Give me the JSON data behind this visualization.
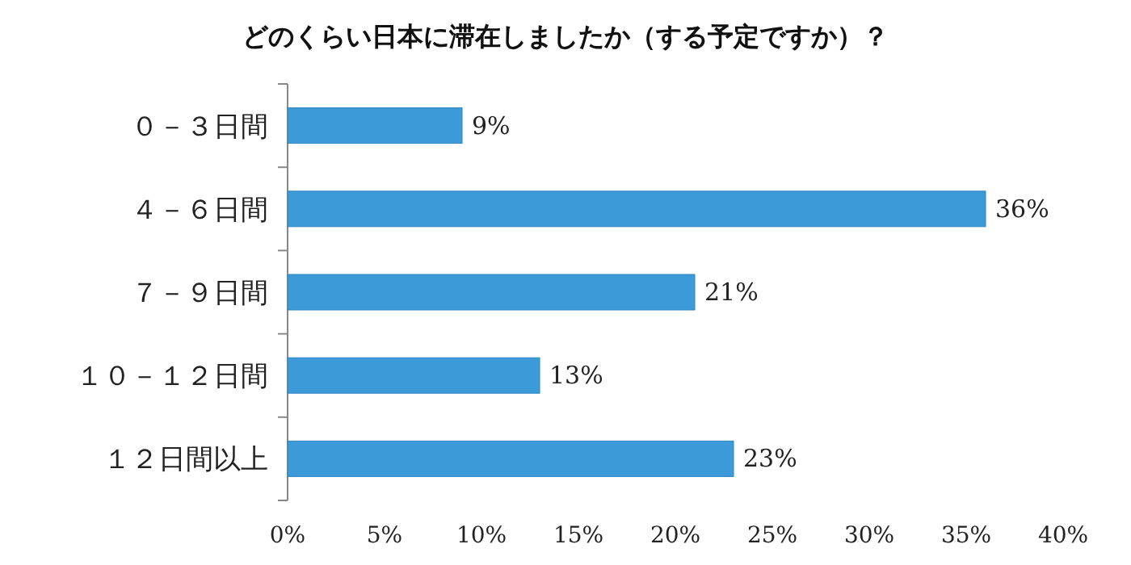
{
  "chart_data": {
    "type": "bar",
    "orientation": "horizontal",
    "title": "どのくらい日本に滞在しましたか（する予定ですか）？",
    "categories": [
      "０－３日間",
      "４－６日間",
      "７－９日間",
      "１０－１２日間",
      "１２日間以上"
    ],
    "values": [
      9,
      36,
      21,
      13,
      23
    ],
    "value_labels": [
      "9%",
      "36%",
      "21%",
      "13%",
      "23%"
    ],
    "color": "#3d9ad8",
    "xlim": [
      0,
      40
    ],
    "xticks": [
      {
        "value": 0,
        "label": "0%"
      },
      {
        "value": 5,
        "label": "5%"
      },
      {
        "value": 10,
        "label": "10%"
      },
      {
        "value": 15,
        "label": "15%"
      },
      {
        "value": 20,
        "label": "20%"
      },
      {
        "value": 25,
        "label": "25%"
      },
      {
        "value": 30,
        "label": "30%"
      },
      {
        "value": 35,
        "label": "35%"
      },
      {
        "value": 40,
        "label": "40%"
      }
    ],
    "grid": false
  }
}
